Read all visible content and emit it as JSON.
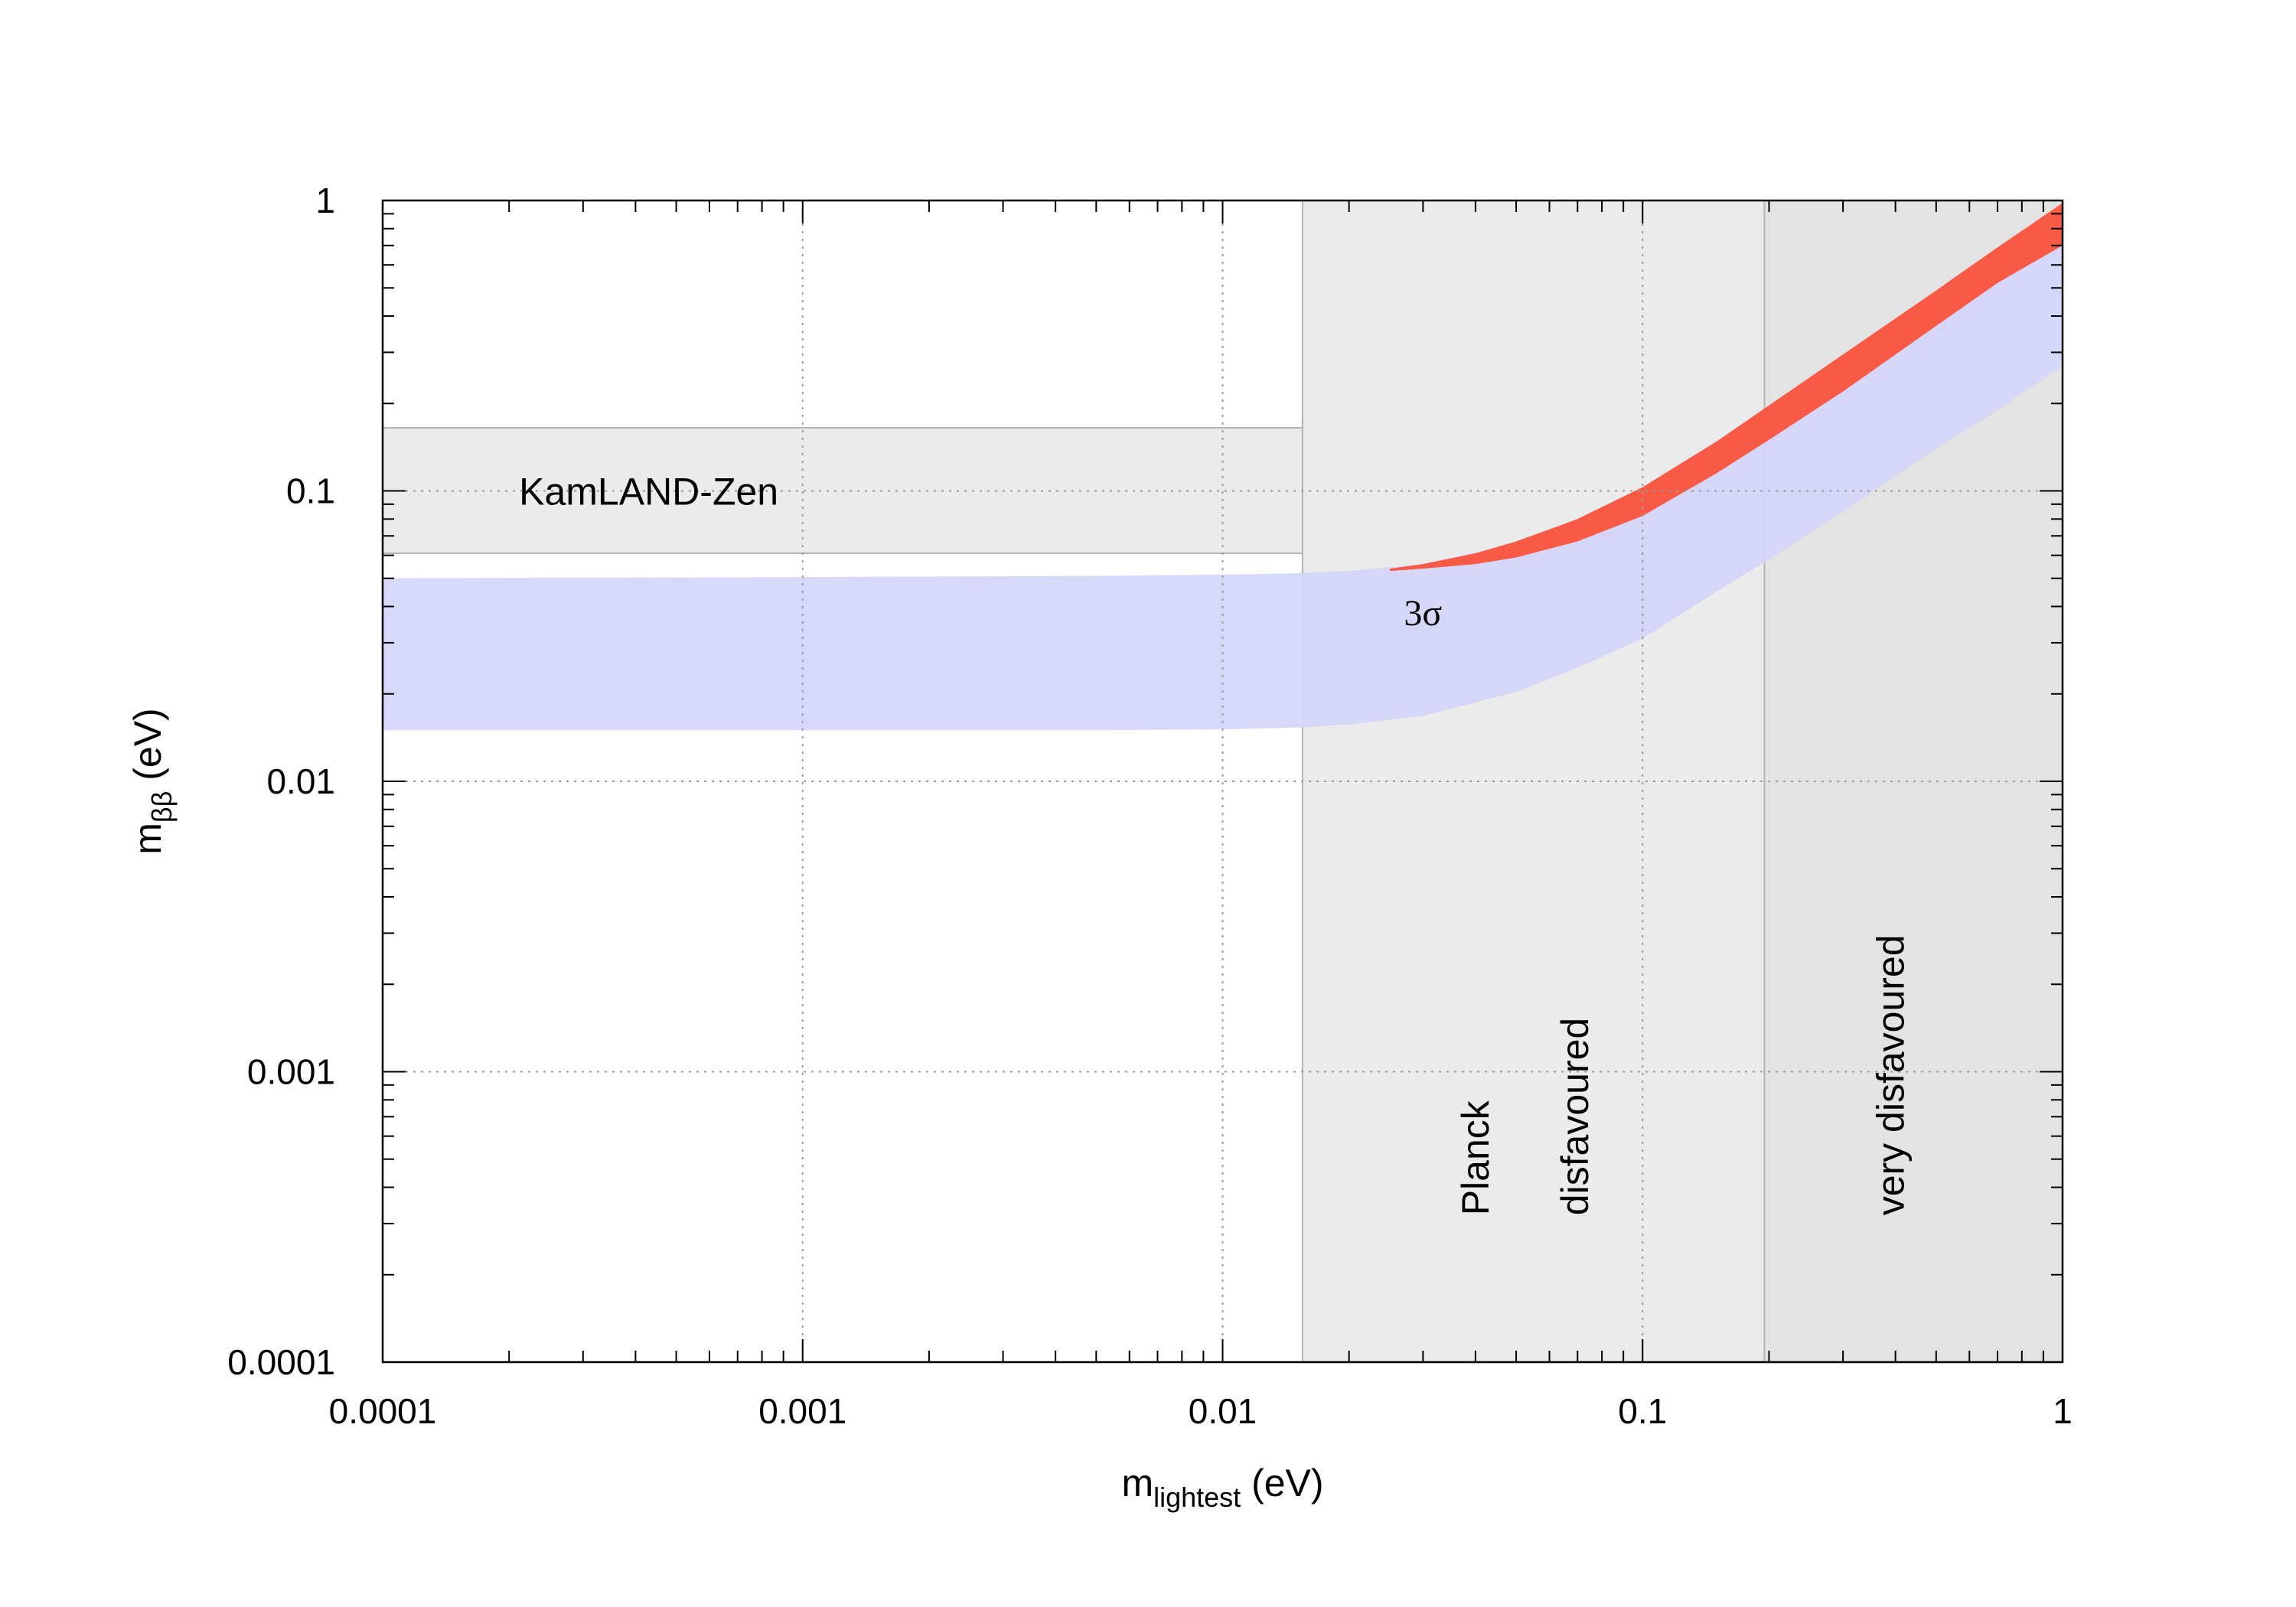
{
  "chart_data": {
    "type": "area",
    "x_scale": "log",
    "y_scale": "log",
    "xlim": [
      0.0001,
      1
    ],
    "ylim": [
      0.0001,
      1
    ],
    "grid": true,
    "xlabel": {
      "main": "m",
      "sub": "lightest",
      "unit": " (eV)"
    },
    "ylabel": {
      "main": "m",
      "sub": "ββ",
      "unit": " (eV)"
    },
    "x_ticks": [
      {
        "value": 0.0001,
        "label": "0.0001"
      },
      {
        "value": 0.001,
        "label": "0.001"
      },
      {
        "value": 0.01,
        "label": "0.01"
      },
      {
        "value": 0.1,
        "label": "0.1"
      },
      {
        "value": 1,
        "label": "1"
      }
    ],
    "y_ticks": [
      {
        "value": 0.0001,
        "label": "0.0001"
      },
      {
        "value": 0.001,
        "label": "0.001"
      },
      {
        "value": 0.01,
        "label": "0.01"
      },
      {
        "value": 0.1,
        "label": "0.1"
      },
      {
        "value": 1,
        "label": "1"
      }
    ],
    "regions": [
      {
        "name": "KamLAND-Zen",
        "orientation": "horizontal",
        "y_range": [
          0.061,
          0.165
        ],
        "color": "#ebebeb"
      },
      {
        "name": "Planck disfavoured",
        "orientation": "vertical",
        "x_range": [
          0.0155,
          0.195
        ],
        "color": "#ebebeb",
        "label_lines": [
          "Planck",
          "disfavoured"
        ]
      },
      {
        "name": "very disfavoured",
        "orientation": "vertical",
        "x_range": [
          0.195,
          1
        ],
        "color": "#e3e3e3",
        "label_lines": [
          "very disfavoured"
        ]
      }
    ],
    "series": [
      {
        "type": "band",
        "color": "#d4d4fb",
        "x": [
          0.0001,
          0.001,
          0.005,
          0.01,
          0.015,
          0.02,
          0.03,
          0.05,
          0.07,
          0.1,
          0.15,
          0.2,
          0.3,
          0.5,
          0.7,
          1
        ],
        "upper": [
          0.05,
          0.0505,
          0.051,
          0.0515,
          0.052,
          0.053,
          0.056,
          0.066,
          0.079,
          0.1,
          0.143,
          0.19,
          0.285,
          0.48,
          0.67,
          0.97
        ],
        "lower": [
          0.015,
          0.015,
          0.015,
          0.0151,
          0.0153,
          0.0157,
          0.0168,
          0.0203,
          0.0246,
          0.031,
          0.045,
          0.058,
          0.085,
          0.14,
          0.19,
          0.27
        ]
      },
      {
        "type": "band",
        "color": "#f85a45",
        "annotation": "3σ",
        "x": [
          0.025,
          0.03,
          0.04,
          0.05,
          0.07,
          0.1,
          0.15,
          0.2,
          0.3,
          0.5,
          0.7,
          1
        ],
        "upper": [
          0.054,
          0.056,
          0.061,
          0.067,
          0.08,
          0.103,
          0.148,
          0.197,
          0.295,
          0.49,
          0.69,
          0.98
        ],
        "lower": [
          0.053,
          0.054,
          0.056,
          0.059,
          0.067,
          0.082,
          0.115,
          0.15,
          0.22,
          0.37,
          0.52,
          0.7
        ]
      }
    ]
  }
}
